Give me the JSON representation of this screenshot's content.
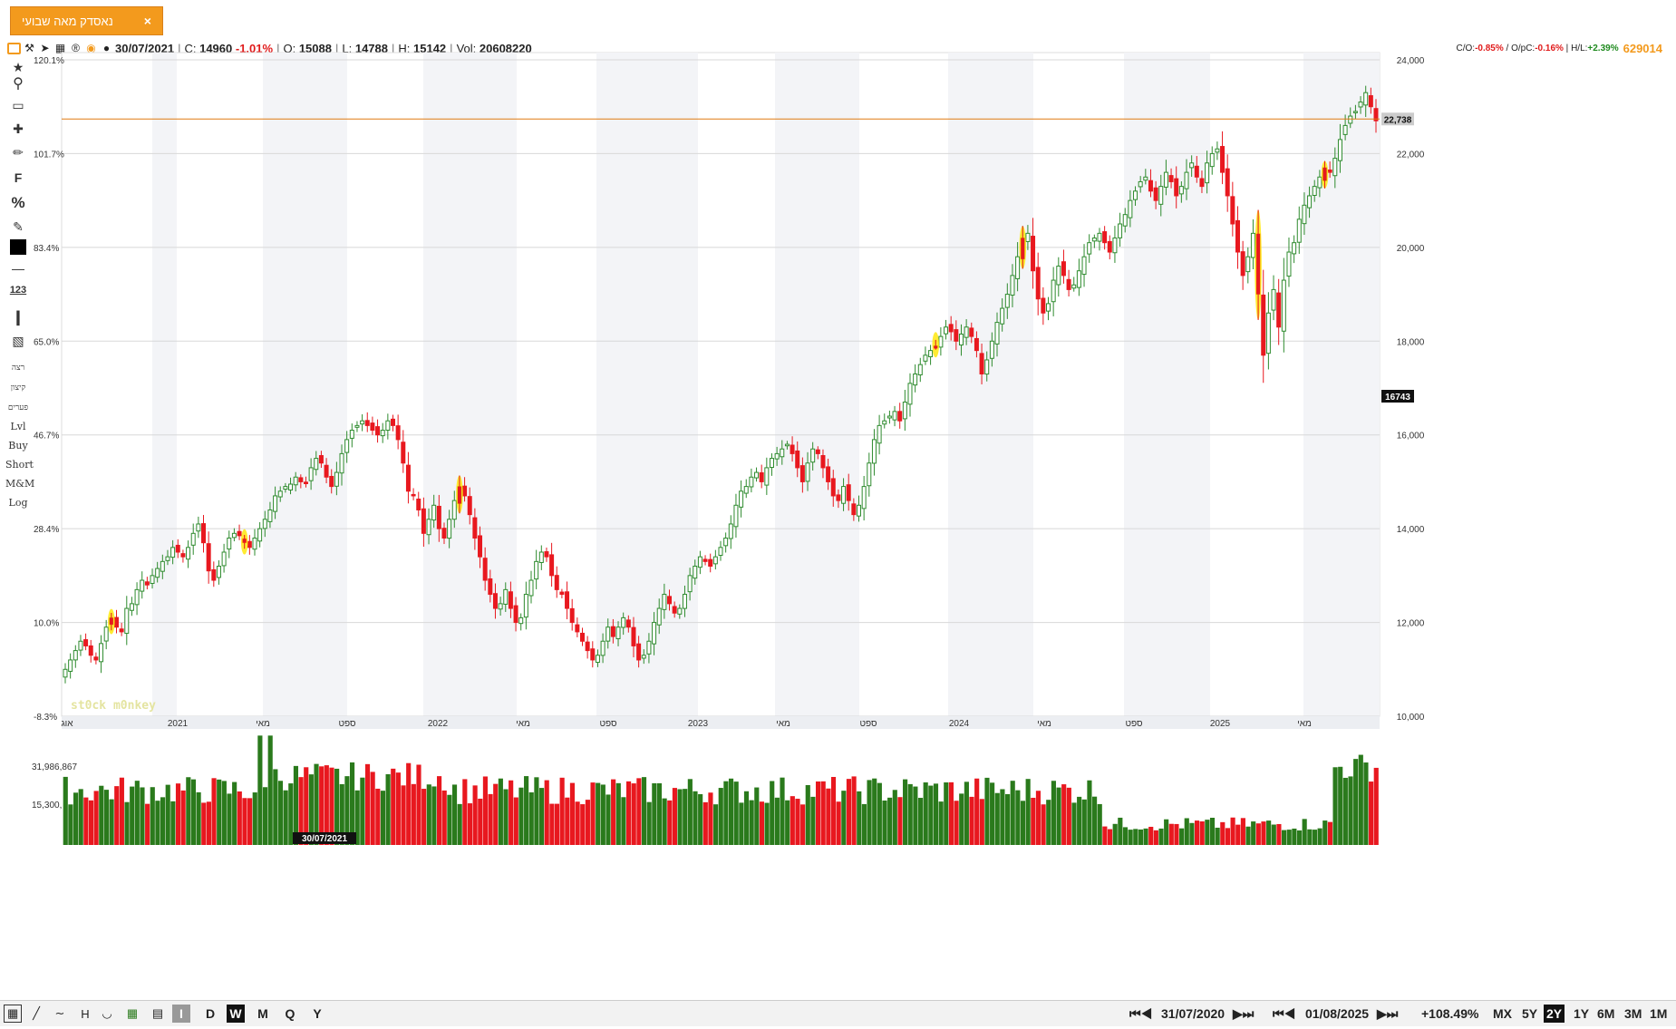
{
  "tab": {
    "title": "נאסדק מאה שבועי",
    "close": "×"
  },
  "infobar": {
    "date": "30/07/2021",
    "close_label": "C:",
    "close_value": "14960",
    "change": "-1.01%",
    "open_label": "O:",
    "open_value": "15088",
    "low_label": "L:",
    "low_value": "14788",
    "high_label": "H:",
    "high_value": "15142",
    "vol_label": "Vol:",
    "vol_value": "20608220"
  },
  "rightinfo": {
    "co_label": "C/O:",
    "co_value": "-0.85%",
    "opc_label": "O/pC:",
    "opc_value": "-0.16%",
    "hl_label": "H/L:",
    "hl_value": "+2.39%",
    "big_value": "629014"
  },
  "tools_text": [
    "רצה",
    "קיצון",
    "פערים",
    "Lvl",
    "Buy",
    "Short",
    "M&M",
    "Log"
  ],
  "icons": [
    "star-icon",
    "search-icon",
    "eraser-icon",
    "crosshair-icon",
    "pencil-icon",
    "fibonacci-icon",
    "percent-icon",
    "edit-icon",
    "color-square-icon",
    "line-width-icon",
    "numbers-icon",
    "vertical-line-icon",
    "candle-style-icon"
  ],
  "colors": {
    "up": "#2e8b2e",
    "down": "#e8181f",
    "highlight": "#ffe600",
    "hline": "#e07a10",
    "vol_up": "#2a7a1c",
    "vol_down": "#e8181f"
  },
  "watermark": "st0ck m0nkey",
  "chart_data": {
    "type": "candlestick",
    "price_axis_right": {
      "ticks": [
        "24,000",
        "22,000",
        "20,000",
        "18,000",
        "16,000",
        "14,000",
        "12,000",
        "10,000"
      ],
      "ylim": [
        10000,
        24000
      ]
    },
    "percent_axis_left": {
      "ticks": [
        "120.1%",
        "101.7%",
        "83.4%",
        "65.0%",
        "46.7%",
        "28.4%",
        "10.0%",
        "-8.3%"
      ]
    },
    "x_labels": [
      "אוג",
      "2021",
      "מאי",
      "ספט",
      "2022",
      "מאי",
      "ספט",
      "2023",
      "מאי",
      "ספט",
      "2024",
      "מאי",
      "ספט",
      "2025",
      "מאי"
    ],
    "horizontal_line": {
      "value": 22738,
      "label": "22,738"
    },
    "last_marker": {
      "label": "16743"
    },
    "selected_date_label": "30/07/2021",
    "weekly_closes": [
      11000,
      11200,
      11400,
      11600,
      11500,
      11300,
      11200,
      11550,
      11900,
      12100,
      11900,
      11800,
      12300,
      12400,
      12700,
      12900,
      12800,
      13000,
      13150,
      13300,
      13400,
      13600,
      13500,
      13400,
      13600,
      13900,
      14100,
      13700,
      13100,
      12900,
      13200,
      13500,
      13800,
      13900,
      13850,
      13700,
      13600,
      13800,
      14000,
      14200,
      14400,
      14700,
      14800,
      14900,
      14950,
      15100,
      15000,
      14960,
      15300,
      15500,
      15400,
      15100,
      14900,
      15200,
      15600,
      15900,
      16100,
      16200,
      16300,
      16200,
      16100,
      16000,
      16100,
      16300,
      16200,
      15900,
      15400,
      14800,
      14700,
      14400,
      13900,
      14200,
      14500,
      14000,
      13800,
      14200,
      14600,
      14900,
      14700,
      14300,
      13800,
      13400,
      12900,
      12600,
      12300,
      12400,
      12700,
      12300,
      12000,
      12100,
      12600,
      12900,
      13300,
      13500,
      13400,
      13000,
      12700,
      12600,
      12300,
      12000,
      11800,
      11600,
      11400,
      11200,
      11300,
      11600,
      11900,
      11700,
      11900,
      12100,
      11900,
      11500,
      11200,
      11300,
      11600,
      12000,
      12300,
      12600,
      12400,
      12200,
      12300,
      12600,
      13000,
      13200,
      13400,
      13300,
      13200,
      13400,
      13600,
      13800,
      14100,
      14500,
      14800,
      14900,
      15100,
      15200,
      15000,
      15300,
      15500,
      15600,
      15700,
      15800,
      15600,
      15300,
      15000,
      15400,
      15700,
      15600,
      15300,
      15000,
      14700,
      14600,
      14900,
      14600,
      14300,
      14500,
      14900,
      15400,
      15900,
      16200,
      16300,
      16400,
      16500,
      16300,
      16700,
      17100,
      17300,
      17500,
      17700,
      17800,
      17900,
      18100,
      18300,
      18200,
      18000,
      18150,
      18300,
      18100,
      17800,
      17300,
      17600,
      18000,
      18400,
      18700,
      19000,
      19400,
      19800,
      20200,
      20300,
      19500,
      18900,
      18600,
      18800,
      19300,
      19600,
      19400,
      19100,
      19200,
      19500,
      19800,
      20100,
      20200,
      20300,
      20100,
      19900,
      20200,
      20500,
      20700,
      21000,
      21200,
      21400,
      21500,
      21200,
      21000,
      21300,
      21600,
      21400,
      21100,
      21300,
      21600,
      21800,
      21500,
      21300,
      21800,
      22000,
      22100,
      21600,
      21100,
      20500,
      19900,
      19400,
      19800,
      20300,
      19000,
      17700,
      18600,
      19100,
      18300,
      19300,
      19900,
      20100,
      20600,
      20900,
      21100,
      21300,
      21500,
      21700,
      21600,
      21900,
      22300,
      22600,
      22800,
      22900,
      23100,
      23300,
      23000,
      22700
    ],
    "volume_axis": {
      "ticks": [
        "31,986,867",
        "15,300,"
      ]
    }
  }
}
